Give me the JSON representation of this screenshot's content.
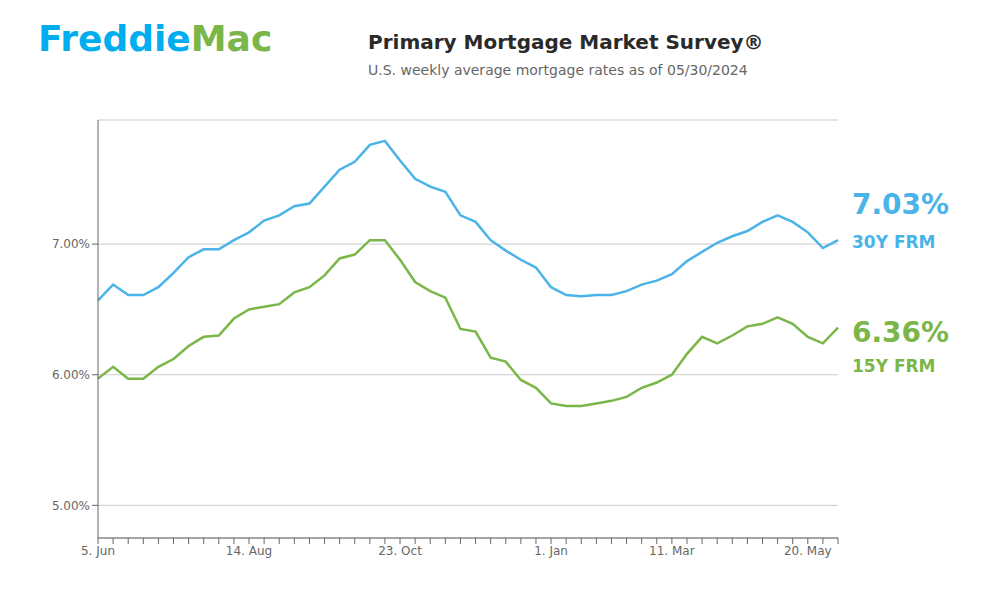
{
  "chart_data": {
    "type": "line",
    "title": "Primary Mortgage Market Survey®",
    "subtitle": "U.S. weekly average mortgage rates as of 05/30/2024",
    "categories": [
      "5. Jun",
      null,
      null,
      null,
      null,
      null,
      null,
      null,
      null,
      null,
      "14. Aug",
      null,
      null,
      null,
      null,
      null,
      null,
      null,
      null,
      null,
      "23. Oct",
      null,
      null,
      null,
      null,
      null,
      null,
      null,
      null,
      null,
      "1. Jan",
      null,
      null,
      null,
      null,
      null,
      null,
      null,
      "11. Mar",
      null,
      null,
      null,
      null,
      null,
      null,
      null,
      null,
      "20. May",
      null,
      null
    ],
    "series": [
      {
        "name": "30Y FRM",
        "color": "#4ab3e8",
        "values": [
          6.57,
          6.69,
          6.61,
          6.61,
          6.67,
          6.78,
          6.9,
          6.96,
          6.96,
          7.03,
          7.09,
          7.18,
          7.22,
          7.29,
          7.31,
          7.44,
          7.57,
          7.63,
          7.76,
          7.79,
          7.64,
          7.5,
          7.44,
          7.4,
          7.22,
          7.17,
          7.03,
          6.95,
          6.88,
          6.82,
          6.67,
          6.61,
          6.6,
          6.61,
          6.61,
          6.64,
          6.69,
          6.72,
          6.77,
          6.87,
          6.94,
          7.01,
          7.06,
          7.1,
          7.17,
          7.22,
          7.17,
          7.09,
          6.97,
          7.03
        ]
      },
      {
        "name": "15Y FRM",
        "color": "#7ab648",
        "values": [
          5.97,
          6.06,
          5.97,
          5.97,
          6.06,
          6.12,
          6.22,
          6.29,
          6.3,
          6.43,
          6.5,
          6.52,
          6.54,
          6.63,
          6.67,
          6.76,
          6.89,
          6.92,
          7.03,
          7.03,
          6.88,
          6.71,
          6.64,
          6.59,
          6.35,
          6.33,
          6.13,
          6.1,
          5.96,
          5.9,
          5.78,
          5.76,
          5.76,
          5.78,
          5.8,
          5.83,
          5.9,
          5.94,
          6.0,
          6.16,
          6.29,
          6.24,
          6.3,
          6.37,
          6.39,
          6.44,
          6.39,
          6.29,
          6.24,
          6.36
        ]
      }
    ],
    "ylim": [
      4.75,
      7.95
    ],
    "yticks": [
      {
        "value": 5.0,
        "label": "5.00%"
      },
      {
        "value": 6.0,
        "label": "6.00%"
      },
      {
        "value": 7.0,
        "label": "7.00%"
      }
    ],
    "grid": true,
    "annotations": [
      {
        "text": "Freddie",
        "color": "#00aeef"
      },
      {
        "text": "Mac",
        "color": "#7ab648"
      },
      {
        "text": "7.03%",
        "color": "#4ab3e8"
      },
      {
        "text": "6.36%",
        "color": "#7ab648"
      }
    ]
  }
}
